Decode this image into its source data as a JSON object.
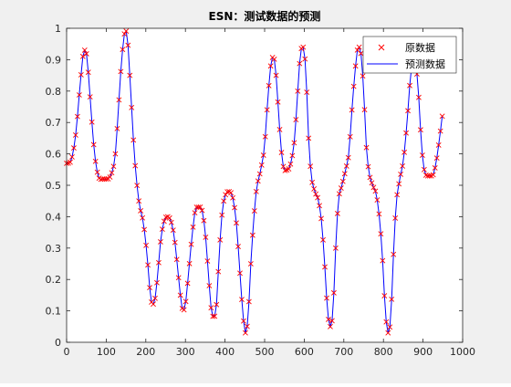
{
  "chart_data": {
    "type": "line",
    "title": "ESN：测试数据的预测",
    "xlabel": "",
    "ylabel": "",
    "xlim": [
      0,
      1000
    ],
    "ylim": [
      0,
      1
    ],
    "xticks": [
      0,
      100,
      200,
      300,
      400,
      500,
      600,
      700,
      800,
      900,
      1000
    ],
    "yticks": [
      0,
      0.1,
      0.2,
      0.3,
      0.4,
      0.5,
      0.6,
      0.7,
      0.8,
      0.9,
      1
    ],
    "xtick_labels": [
      "0",
      "100",
      "200",
      "300",
      "400",
      "500",
      "600",
      "700",
      "800",
      "900",
      "1000"
    ],
    "ytick_labels": [
      "0",
      "0.1",
      "0.2",
      "0.3",
      "0.4",
      "0.5",
      "0.6",
      "0.7",
      "0.8",
      "0.9",
      "1"
    ],
    "grid": false,
    "legend_position": "top-right",
    "x_step": 4,
    "series": [
      {
        "name": "原数据",
        "marker": "x",
        "color": "#ff0000",
        "key_points": [
          [
            0,
            0.57
          ],
          [
            10,
            0.58
          ],
          [
            20,
            0.66
          ],
          [
            30,
            0.82
          ],
          [
            37,
            0.92
          ],
          [
            42,
            0.93
          ],
          [
            48,
            0.86
          ],
          [
            55,
            0.72
          ],
          [
            62,
            0.6
          ],
          [
            70,
            0.53
          ],
          [
            80,
            0.52
          ],
          [
            90,
            0.52
          ],
          [
            100,
            0.54
          ],
          [
            108,
            0.6
          ],
          [
            115,
            0.75
          ],
          [
            122,
            0.9
          ],
          [
            130,
            0.99
          ],
          [
            134,
            0.98
          ],
          [
            140,
            0.85
          ],
          [
            150,
            0.6
          ],
          [
            160,
            0.45
          ],
          [
            170,
            0.38
          ],
          [
            178,
            0.28
          ],
          [
            185,
            0.16
          ],
          [
            190,
            0.12
          ],
          [
            196,
            0.14
          ],
          [
            202,
            0.22
          ],
          [
            208,
            0.32
          ],
          [
            215,
            0.38
          ],
          [
            222,
            0.4
          ],
          [
            230,
            0.39
          ],
          [
            238,
            0.34
          ],
          [
            245,
            0.25
          ],
          [
            252,
            0.15
          ],
          [
            258,
            0.1
          ],
          [
            264,
            0.13
          ],
          [
            270,
            0.22
          ],
          [
            278,
            0.34
          ],
          [
            285,
            0.42
          ],
          [
            292,
            0.43
          ],
          [
            300,
            0.42
          ],
          [
            307,
            0.35
          ],
          [
            314,
            0.22
          ],
          [
            320,
            0.11
          ],
          [
            326,
            0.08
          ],
          [
            332,
            0.12
          ],
          [
            338,
            0.28
          ],
          [
            345,
            0.42
          ],
          [
            352,
            0.47
          ],
          [
            360,
            0.48
          ],
          [
            368,
            0.46
          ],
          [
            376,
            0.38
          ],
          [
            384,
            0.22
          ],
          [
            390,
            0.1
          ],
          [
            396,
            0.03
          ],
          [
            402,
            0.08
          ],
          [
            408,
            0.25
          ],
          [
            415,
            0.4
          ],
          [
            420,
            0.48
          ],
          [
            430,
            0.55
          ],
          [
            438,
            0.62
          ],
          [
            445,
            0.76
          ],
          [
            452,
            0.88
          ],
          [
            458,
            0.91
          ],
          [
            464,
            0.85
          ],
          [
            470,
            0.72
          ],
          [
            475,
            0.62
          ],
          [
            480,
            0.56
          ],
          [
            490,
            0.55
          ],
          [
            498,
            0.58
          ],
          [
            505,
            0.65
          ],
          [
            512,
            0.8
          ],
          [
            518,
            0.92
          ],
          [
            524,
            0.94
          ],
          [
            530,
            0.86
          ],
          [
            536,
            0.65
          ],
          [
            542,
            0.53
          ],
          [
            550,
            0.48
          ],
          [
            558,
            0.45
          ],
          [
            565,
            0.38
          ],
          [
            572,
            0.24
          ],
          [
            578,
            0.1
          ],
          [
            584,
            0.05
          ],
          [
            590,
            0.1
          ],
          [
            596,
            0.3
          ],
          [
            602,
            0.45
          ],
          [
            610,
            0.5
          ],
          [
            618,
            0.55
          ],
          [
            625,
            0.6
          ],
          [
            632,
            0.74
          ],
          [
            640,
            0.88
          ],
          [
            646,
            0.94
          ],
          [
            652,
            0.92
          ],
          [
            658,
            0.8
          ],
          [
            664,
            0.62
          ],
          [
            670,
            0.54
          ],
          [
            678,
            0.5
          ],
          [
            686,
            0.47
          ],
          [
            694,
            0.38
          ],
          [
            700,
            0.26
          ],
          [
            706,
            0.1
          ],
          [
            712,
            0.03
          ],
          [
            718,
            0.08
          ],
          [
            724,
            0.28
          ],
          [
            730,
            0.44
          ],
          [
            738,
            0.52
          ],
          [
            746,
            0.58
          ],
          [
            754,
            0.7
          ],
          [
            762,
            0.85
          ],
          [
            768,
            0.9
          ],
          [
            774,
            0.88
          ],
          [
            780,
            0.78
          ],
          [
            786,
            0.63
          ],
          [
            792,
            0.55
          ],
          [
            800,
            0.53
          ],
          [
            810,
            0.53
          ],
          [
            818,
            0.57
          ],
          [
            826,
            0.65
          ],
          [
            832,
            0.72
          ]
        ]
      },
      {
        "name": "预测数据",
        "line": "solid",
        "color": "#0000ff",
        "key_points": [
          [
            0,
            0.57
          ],
          [
            10,
            0.58
          ],
          [
            20,
            0.66
          ],
          [
            30,
            0.82
          ],
          [
            37,
            0.92
          ],
          [
            42,
            0.93
          ],
          [
            48,
            0.86
          ],
          [
            55,
            0.72
          ],
          [
            62,
            0.6
          ],
          [
            70,
            0.53
          ],
          [
            80,
            0.52
          ],
          [
            90,
            0.52
          ],
          [
            100,
            0.54
          ],
          [
            108,
            0.6
          ],
          [
            115,
            0.75
          ],
          [
            122,
            0.9
          ],
          [
            130,
            0.99
          ],
          [
            134,
            0.98
          ],
          [
            140,
            0.85
          ],
          [
            150,
            0.6
          ],
          [
            160,
            0.45
          ],
          [
            170,
            0.38
          ],
          [
            178,
            0.28
          ],
          [
            185,
            0.16
          ],
          [
            190,
            0.12
          ],
          [
            196,
            0.14
          ],
          [
            202,
            0.22
          ],
          [
            208,
            0.32
          ],
          [
            215,
            0.38
          ],
          [
            222,
            0.4
          ],
          [
            230,
            0.39
          ],
          [
            238,
            0.34
          ],
          [
            245,
            0.25
          ],
          [
            252,
            0.15
          ],
          [
            258,
            0.1
          ],
          [
            264,
            0.13
          ],
          [
            270,
            0.22
          ],
          [
            278,
            0.34
          ],
          [
            285,
            0.42
          ],
          [
            292,
            0.43
          ],
          [
            300,
            0.42
          ],
          [
            307,
            0.35
          ],
          [
            314,
            0.22
          ],
          [
            320,
            0.11
          ],
          [
            326,
            0.08
          ],
          [
            332,
            0.12
          ],
          [
            338,
            0.28
          ],
          [
            345,
            0.42
          ],
          [
            352,
            0.47
          ],
          [
            360,
            0.48
          ],
          [
            368,
            0.46
          ],
          [
            376,
            0.38
          ],
          [
            384,
            0.22
          ],
          [
            390,
            0.1
          ],
          [
            396,
            0.03
          ],
          [
            402,
            0.08
          ],
          [
            408,
            0.25
          ],
          [
            415,
            0.4
          ],
          [
            420,
            0.48
          ],
          [
            430,
            0.55
          ],
          [
            438,
            0.62
          ],
          [
            445,
            0.76
          ],
          [
            452,
            0.88
          ],
          [
            458,
            0.91
          ],
          [
            464,
            0.85
          ],
          [
            470,
            0.72
          ],
          [
            475,
            0.62
          ],
          [
            480,
            0.56
          ],
          [
            490,
            0.55
          ],
          [
            498,
            0.58
          ],
          [
            505,
            0.65
          ],
          [
            512,
            0.8
          ],
          [
            518,
            0.92
          ],
          [
            524,
            0.94
          ],
          [
            530,
            0.86
          ],
          [
            536,
            0.65
          ],
          [
            542,
            0.53
          ],
          [
            550,
            0.48
          ],
          [
            558,
            0.45
          ],
          [
            565,
            0.38
          ],
          [
            572,
            0.24
          ],
          [
            578,
            0.1
          ],
          [
            584,
            0.05
          ],
          [
            590,
            0.1
          ],
          [
            596,
            0.3
          ],
          [
            602,
            0.45
          ],
          [
            610,
            0.5
          ],
          [
            618,
            0.55
          ],
          [
            625,
            0.6
          ],
          [
            632,
            0.74
          ],
          [
            640,
            0.88
          ],
          [
            646,
            0.94
          ],
          [
            652,
            0.92
          ],
          [
            658,
            0.8
          ],
          [
            664,
            0.62
          ],
          [
            670,
            0.54
          ],
          [
            678,
            0.5
          ],
          [
            686,
            0.47
          ],
          [
            694,
            0.38
          ],
          [
            700,
            0.26
          ],
          [
            706,
            0.1
          ],
          [
            712,
            0.03
          ],
          [
            718,
            0.08
          ],
          [
            724,
            0.28
          ],
          [
            730,
            0.44
          ],
          [
            738,
            0.52
          ],
          [
            746,
            0.58
          ],
          [
            754,
            0.7
          ],
          [
            762,
            0.85
          ],
          [
            768,
            0.9
          ],
          [
            774,
            0.88
          ],
          [
            780,
            0.78
          ],
          [
            786,
            0.63
          ],
          [
            792,
            0.55
          ],
          [
            800,
            0.53
          ],
          [
            810,
            0.53
          ],
          [
            818,
            0.57
          ],
          [
            826,
            0.65
          ],
          [
            832,
            0.72
          ]
        ]
      }
    ]
  }
}
